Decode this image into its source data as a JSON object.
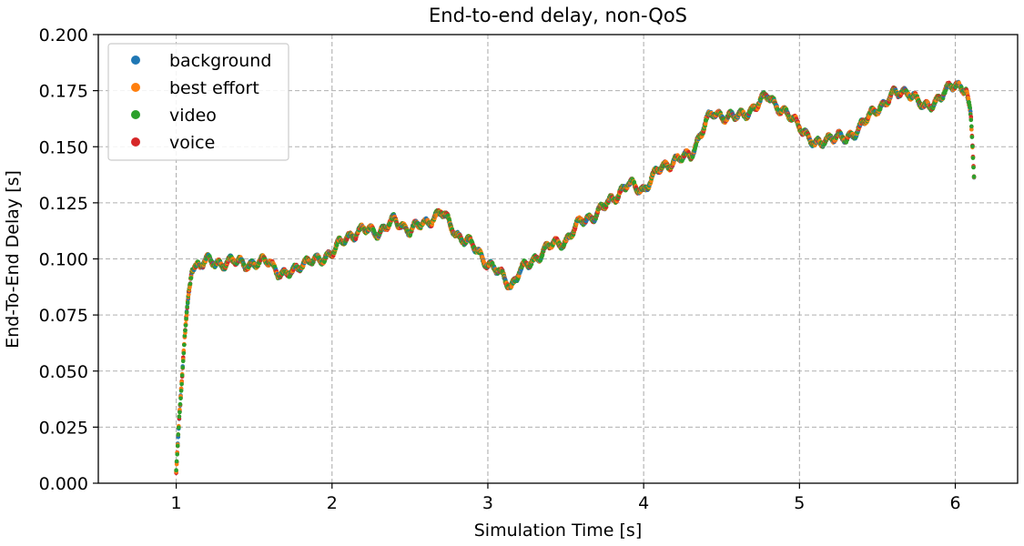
{
  "chart_data": {
    "type": "scatter",
    "title": "End-to-end delay, non-QoS",
    "xlabel": "Simulation Time [s]",
    "ylabel": "End-To-End Delay [s]",
    "xlim": [
      0.5,
      6.4
    ],
    "ylim": [
      0.0,
      0.2
    ],
    "xticks": [
      1,
      2,
      3,
      4,
      5,
      6
    ],
    "xtick_labels": [
      "1",
      "2",
      "3",
      "4",
      "5",
      "6"
    ],
    "yticks": [
      0.0,
      0.025,
      0.05,
      0.075,
      0.1,
      0.125,
      0.15,
      0.175,
      0.2
    ],
    "ytick_labels": [
      "0.000",
      "0.025",
      "0.050",
      "0.075",
      "0.100",
      "0.125",
      "0.150",
      "0.175",
      "0.200"
    ],
    "grid": true,
    "legend_position": "top-left",
    "series": [
      {
        "name": "background",
        "color": "#1f77b4"
      },
      {
        "name": "best effort",
        "color": "#ff7f0e"
      },
      {
        "name": "video",
        "color": "#2ca02c"
      },
      {
        "name": "voice",
        "color": "#d62728"
      }
    ],
    "delay_profile": {
      "x": [
        1.0,
        1.02,
        1.05,
        1.08,
        1.1,
        1.15,
        1.2,
        1.3,
        1.4,
        1.5,
        1.6,
        1.65,
        1.7,
        1.8,
        1.9,
        2.0,
        2.1,
        2.2,
        2.3,
        2.4,
        2.5,
        2.6,
        2.7,
        2.8,
        2.9,
        3.0,
        3.1,
        3.15,
        3.2,
        3.3,
        3.4,
        3.5,
        3.6,
        3.7,
        3.8,
        3.9,
        4.0,
        4.1,
        4.2,
        4.3,
        4.4,
        4.45,
        4.5,
        4.6,
        4.7,
        4.8,
        4.9,
        5.0,
        5.1,
        5.2,
        5.3,
        5.4,
        5.5,
        5.6,
        5.7,
        5.8,
        5.9,
        6.0,
        6.07,
        6.1,
        6.12
      ],
      "y": [
        0.003,
        0.03,
        0.06,
        0.085,
        0.097,
        0.097,
        0.099,
        0.098,
        0.099,
        0.097,
        0.1,
        0.094,
        0.092,
        0.098,
        0.099,
        0.103,
        0.11,
        0.113,
        0.112,
        0.117,
        0.113,
        0.116,
        0.121,
        0.111,
        0.106,
        0.098,
        0.092,
        0.088,
        0.094,
        0.1,
        0.106,
        0.108,
        0.117,
        0.12,
        0.127,
        0.133,
        0.131,
        0.14,
        0.144,
        0.146,
        0.161,
        0.165,
        0.164,
        0.163,
        0.167,
        0.173,
        0.165,
        0.16,
        0.15,
        0.155,
        0.153,
        0.16,
        0.167,
        0.173,
        0.175,
        0.167,
        0.172,
        0.178,
        0.176,
        0.162,
        0.137
      ]
    }
  }
}
